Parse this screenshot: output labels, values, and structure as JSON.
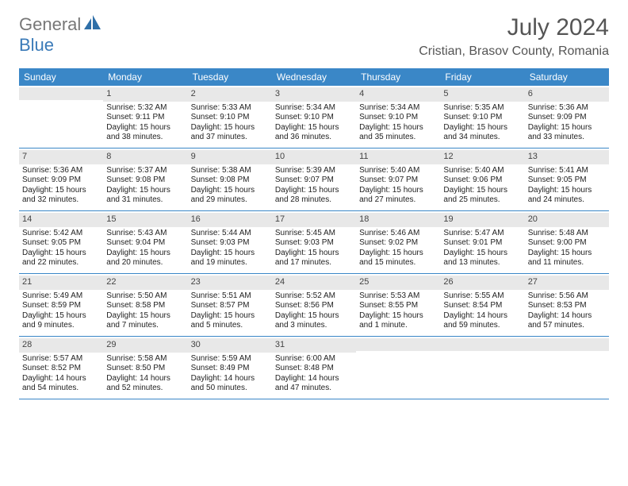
{
  "brand": {
    "general": "General",
    "blue": "Blue"
  },
  "title": "July 2024",
  "location": "Cristian, Brasov County, Romania",
  "colors": {
    "header_bg": "#3a87c7",
    "header_text": "#ffffff",
    "daybar_bg": "#e8e8e8",
    "row_border": "#3a87c7",
    "text": "#222222",
    "brand_gray": "#777777",
    "brand_blue": "#3a7ab8"
  },
  "day_names": [
    "Sunday",
    "Monday",
    "Tuesday",
    "Wednesday",
    "Thursday",
    "Friday",
    "Saturday"
  ],
  "weeks": [
    [
      {
        "n": "",
        "sr": "",
        "ss": "",
        "dl": ""
      },
      {
        "n": "1",
        "sr": "Sunrise: 5:32 AM",
        "ss": "Sunset: 9:11 PM",
        "dl": "Daylight: 15 hours and 38 minutes."
      },
      {
        "n": "2",
        "sr": "Sunrise: 5:33 AM",
        "ss": "Sunset: 9:10 PM",
        "dl": "Daylight: 15 hours and 37 minutes."
      },
      {
        "n": "3",
        "sr": "Sunrise: 5:34 AM",
        "ss": "Sunset: 9:10 PM",
        "dl": "Daylight: 15 hours and 36 minutes."
      },
      {
        "n": "4",
        "sr": "Sunrise: 5:34 AM",
        "ss": "Sunset: 9:10 PM",
        "dl": "Daylight: 15 hours and 35 minutes."
      },
      {
        "n": "5",
        "sr": "Sunrise: 5:35 AM",
        "ss": "Sunset: 9:10 PM",
        "dl": "Daylight: 15 hours and 34 minutes."
      },
      {
        "n": "6",
        "sr": "Sunrise: 5:36 AM",
        "ss": "Sunset: 9:09 PM",
        "dl": "Daylight: 15 hours and 33 minutes."
      }
    ],
    [
      {
        "n": "7",
        "sr": "Sunrise: 5:36 AM",
        "ss": "Sunset: 9:09 PM",
        "dl": "Daylight: 15 hours and 32 minutes."
      },
      {
        "n": "8",
        "sr": "Sunrise: 5:37 AM",
        "ss": "Sunset: 9:08 PM",
        "dl": "Daylight: 15 hours and 31 minutes."
      },
      {
        "n": "9",
        "sr": "Sunrise: 5:38 AM",
        "ss": "Sunset: 9:08 PM",
        "dl": "Daylight: 15 hours and 29 minutes."
      },
      {
        "n": "10",
        "sr": "Sunrise: 5:39 AM",
        "ss": "Sunset: 9:07 PM",
        "dl": "Daylight: 15 hours and 28 minutes."
      },
      {
        "n": "11",
        "sr": "Sunrise: 5:40 AM",
        "ss": "Sunset: 9:07 PM",
        "dl": "Daylight: 15 hours and 27 minutes."
      },
      {
        "n": "12",
        "sr": "Sunrise: 5:40 AM",
        "ss": "Sunset: 9:06 PM",
        "dl": "Daylight: 15 hours and 25 minutes."
      },
      {
        "n": "13",
        "sr": "Sunrise: 5:41 AM",
        "ss": "Sunset: 9:05 PM",
        "dl": "Daylight: 15 hours and 24 minutes."
      }
    ],
    [
      {
        "n": "14",
        "sr": "Sunrise: 5:42 AM",
        "ss": "Sunset: 9:05 PM",
        "dl": "Daylight: 15 hours and 22 minutes."
      },
      {
        "n": "15",
        "sr": "Sunrise: 5:43 AM",
        "ss": "Sunset: 9:04 PM",
        "dl": "Daylight: 15 hours and 20 minutes."
      },
      {
        "n": "16",
        "sr": "Sunrise: 5:44 AM",
        "ss": "Sunset: 9:03 PM",
        "dl": "Daylight: 15 hours and 19 minutes."
      },
      {
        "n": "17",
        "sr": "Sunrise: 5:45 AM",
        "ss": "Sunset: 9:03 PM",
        "dl": "Daylight: 15 hours and 17 minutes."
      },
      {
        "n": "18",
        "sr": "Sunrise: 5:46 AM",
        "ss": "Sunset: 9:02 PM",
        "dl": "Daylight: 15 hours and 15 minutes."
      },
      {
        "n": "19",
        "sr": "Sunrise: 5:47 AM",
        "ss": "Sunset: 9:01 PM",
        "dl": "Daylight: 15 hours and 13 minutes."
      },
      {
        "n": "20",
        "sr": "Sunrise: 5:48 AM",
        "ss": "Sunset: 9:00 PM",
        "dl": "Daylight: 15 hours and 11 minutes."
      }
    ],
    [
      {
        "n": "21",
        "sr": "Sunrise: 5:49 AM",
        "ss": "Sunset: 8:59 PM",
        "dl": "Daylight: 15 hours and 9 minutes."
      },
      {
        "n": "22",
        "sr": "Sunrise: 5:50 AM",
        "ss": "Sunset: 8:58 PM",
        "dl": "Daylight: 15 hours and 7 minutes."
      },
      {
        "n": "23",
        "sr": "Sunrise: 5:51 AM",
        "ss": "Sunset: 8:57 PM",
        "dl": "Daylight: 15 hours and 5 minutes."
      },
      {
        "n": "24",
        "sr": "Sunrise: 5:52 AM",
        "ss": "Sunset: 8:56 PM",
        "dl": "Daylight: 15 hours and 3 minutes."
      },
      {
        "n": "25",
        "sr": "Sunrise: 5:53 AM",
        "ss": "Sunset: 8:55 PM",
        "dl": "Daylight: 15 hours and 1 minute."
      },
      {
        "n": "26",
        "sr": "Sunrise: 5:55 AM",
        "ss": "Sunset: 8:54 PM",
        "dl": "Daylight: 14 hours and 59 minutes."
      },
      {
        "n": "27",
        "sr": "Sunrise: 5:56 AM",
        "ss": "Sunset: 8:53 PM",
        "dl": "Daylight: 14 hours and 57 minutes."
      }
    ],
    [
      {
        "n": "28",
        "sr": "Sunrise: 5:57 AM",
        "ss": "Sunset: 8:52 PM",
        "dl": "Daylight: 14 hours and 54 minutes."
      },
      {
        "n": "29",
        "sr": "Sunrise: 5:58 AM",
        "ss": "Sunset: 8:50 PM",
        "dl": "Daylight: 14 hours and 52 minutes."
      },
      {
        "n": "30",
        "sr": "Sunrise: 5:59 AM",
        "ss": "Sunset: 8:49 PM",
        "dl": "Daylight: 14 hours and 50 minutes."
      },
      {
        "n": "31",
        "sr": "Sunrise: 6:00 AM",
        "ss": "Sunset: 8:48 PM",
        "dl": "Daylight: 14 hours and 47 minutes."
      },
      {
        "n": "",
        "sr": "",
        "ss": "",
        "dl": ""
      },
      {
        "n": "",
        "sr": "",
        "ss": "",
        "dl": ""
      },
      {
        "n": "",
        "sr": "",
        "ss": "",
        "dl": ""
      }
    ]
  ]
}
